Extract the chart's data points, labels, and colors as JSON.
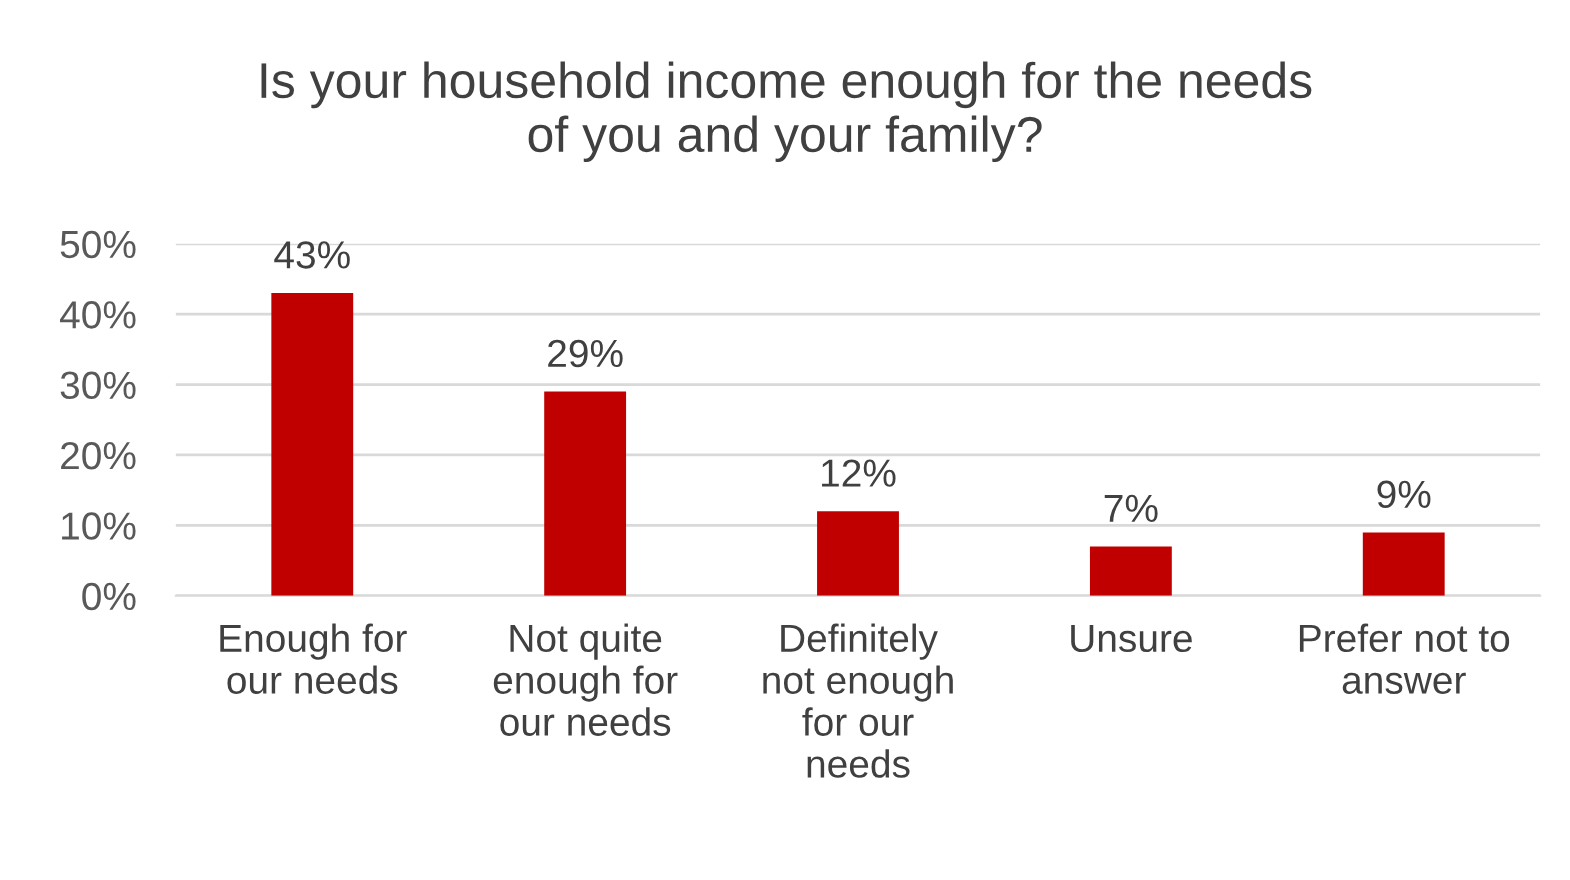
{
  "chart_data": {
    "type": "bar",
    "title": "Is your household income enough for the needs\nof you and your family?",
    "categories": [
      "Enough for\nour needs",
      "Not quite\nenough for\nour needs",
      "Definitely\nnot enough\nfor our\nneeds",
      "Unsure",
      "Prefer not to\nanswer"
    ],
    "values": [
      43,
      29,
      12,
      7,
      9
    ],
    "value_labels": [
      "43%",
      "29%",
      "12%",
      "7%",
      "9%"
    ],
    "color": "#c00000",
    "ylim": [
      0,
      50
    ],
    "yticks": [
      {
        "value": 0,
        "label": "0%"
      },
      {
        "value": 10,
        "label": "10%"
      },
      {
        "value": 20,
        "label": "20%"
      },
      {
        "value": 30,
        "label": "30%"
      },
      {
        "value": 40,
        "label": "40%"
      },
      {
        "value": 50,
        "label": "50%"
      }
    ],
    "grid": "y",
    "legend": false
  }
}
